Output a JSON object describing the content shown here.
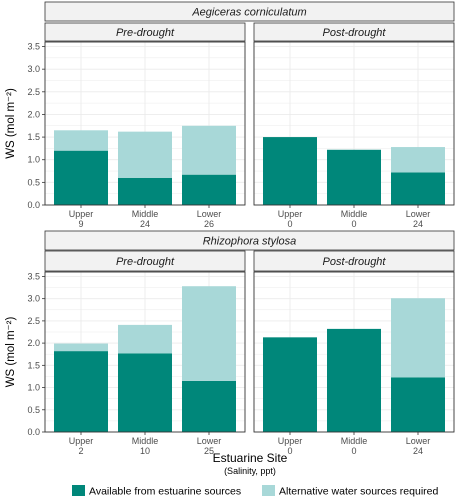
{
  "chart_data": {
    "type": "bar",
    "stacked": true,
    "ylabel": "WS (mol m⁻²)",
    "xlabel": "Estuarine Site",
    "xlabel_sub": "(Salinity, ppt)",
    "ylim": [
      0,
      3.6
    ],
    "yticks": [
      "0.0",
      "0.5",
      "1.0",
      "1.5",
      "2.0",
      "2.5",
      "3.0",
      "3.5"
    ],
    "ytick_values": [
      0,
      0.5,
      1.0,
      1.5,
      2.0,
      2.5,
      3.0,
      3.5
    ],
    "grid": true,
    "legend_position": "bottom",
    "colors": {
      "estuarine": "#00877a",
      "alternative": "#a8d8d8",
      "strip_bg": "#f2f2f2",
      "panel_border": "#333333",
      "grid": "#ebebeb"
    },
    "legend": [
      {
        "key": "estuarine",
        "label": "Available from estuarine sources"
      },
      {
        "key": "alternative",
        "label": "Alternative water sources required"
      }
    ],
    "rows": [
      {
        "species": "Aegiceras corniculatum",
        "panels": [
          {
            "label": "Pre-drought",
            "sites": [
              {
                "site": "Upper",
                "salinity": "9",
                "estuarine": 1.2,
                "alternative": 0.45
              },
              {
                "site": "Middle",
                "salinity": "24",
                "estuarine": 0.6,
                "alternative": 1.02
              },
              {
                "site": "Lower",
                "salinity": "26",
                "estuarine": 0.67,
                "alternative": 1.08
              }
            ]
          },
          {
            "label": "Post-drought",
            "sites": [
              {
                "site": "Upper",
                "salinity": "0",
                "estuarine": 1.5,
                "alternative": 0.0
              },
              {
                "site": "Middle",
                "salinity": "0",
                "estuarine": 1.22,
                "alternative": 0.0
              },
              {
                "site": "Lower",
                "salinity": "24",
                "estuarine": 0.72,
                "alternative": 0.56
              }
            ]
          }
        ]
      },
      {
        "species": "Rhizophora stylosa",
        "panels": [
          {
            "label": "Pre-drought",
            "sites": [
              {
                "site": "Upper",
                "salinity": "2",
                "estuarine": 1.82,
                "alternative": 0.17
              },
              {
                "site": "Middle",
                "salinity": "10",
                "estuarine": 1.77,
                "alternative": 0.64
              },
              {
                "site": "Lower",
                "salinity": "25",
                "estuarine": 1.15,
                "alternative": 2.13
              }
            ]
          },
          {
            "label": "Post-drought",
            "sites": [
              {
                "site": "Upper",
                "salinity": "0",
                "estuarine": 2.13,
                "alternative": 0.0
              },
              {
                "site": "Middle",
                "salinity": "0",
                "estuarine": 2.32,
                "alternative": 0.0
              },
              {
                "site": "Lower",
                "salinity": "24",
                "estuarine": 1.23,
                "alternative": 1.78
              }
            ]
          }
        ]
      }
    ]
  }
}
